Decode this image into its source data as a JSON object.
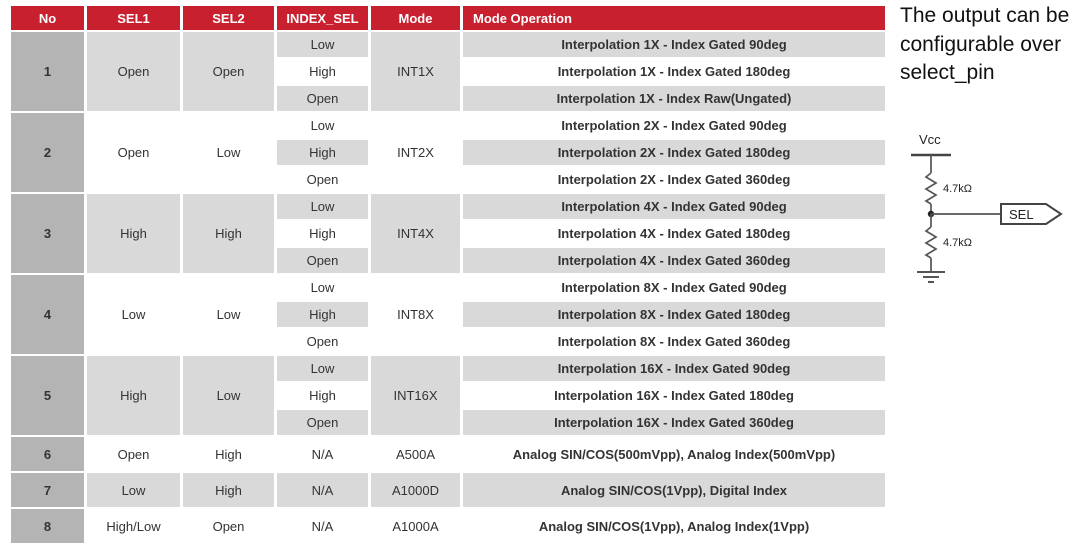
{
  "annotation": {
    "text": "The output can be configurable over select_pin"
  },
  "table": {
    "columns": [
      "No",
      "SEL1",
      "SEL2",
      "INDEX_SEL",
      "Mode",
      "Mode Operation"
    ],
    "groups": [
      {
        "no": "1",
        "sel1": "Open",
        "sel2": "Open",
        "mode": "INT1X",
        "rows": [
          {
            "index_sel": "Low",
            "operation": "Interpolation 1X - Index Gated 90deg"
          },
          {
            "index_sel": "High",
            "operation": "Interpolation 1X - Index Gated 180deg"
          },
          {
            "index_sel": "Open",
            "operation": "Interpolation 1X - Index Raw(Ungated)"
          }
        ]
      },
      {
        "no": "2",
        "sel1": "Open",
        "sel2": "Low",
        "mode": "INT2X",
        "rows": [
          {
            "index_sel": "Low",
            "operation": "Interpolation 2X - Index Gated 90deg"
          },
          {
            "index_sel": "High",
            "operation": "Interpolation 2X - Index Gated 180deg"
          },
          {
            "index_sel": "Open",
            "operation": "Interpolation 2X - Index Gated 360deg"
          }
        ]
      },
      {
        "no": "3",
        "sel1": "High",
        "sel2": "High",
        "mode": "INT4X",
        "rows": [
          {
            "index_sel": "Low",
            "operation": "Interpolation 4X - Index Gated 90deg"
          },
          {
            "index_sel": "High",
            "operation": "Interpolation 4X - Index Gated 180deg"
          },
          {
            "index_sel": "Open",
            "operation": "Interpolation 4X - Index Gated 360deg"
          }
        ]
      },
      {
        "no": "4",
        "sel1": "Low",
        "sel2": "Low",
        "mode": "INT8X",
        "rows": [
          {
            "index_sel": "Low",
            "operation": "Interpolation 8X - Index Gated 90deg"
          },
          {
            "index_sel": "High",
            "operation": "Interpolation 8X - Index Gated 180deg"
          },
          {
            "index_sel": "Open",
            "operation": "Interpolation 8X - Index Gated 360deg"
          }
        ]
      },
      {
        "no": "5",
        "sel1": "High",
        "sel2": "Low",
        "mode": "INT16X",
        "rows": [
          {
            "index_sel": "Low",
            "operation": "Interpolation 16X - Index Gated 90deg"
          },
          {
            "index_sel": "High",
            "operation": "Interpolation 16X - Index Gated 180deg"
          },
          {
            "index_sel": "Open",
            "operation": "Interpolation 16X - Index Gated 360deg"
          }
        ]
      },
      {
        "no": "6",
        "sel1": "Open",
        "sel2": "High",
        "index_sel": "N/A",
        "mode": "A500A",
        "operation": "Analog SIN/COS(500mVpp), Analog Index(500mVpp)"
      },
      {
        "no": "7",
        "sel1": "Low",
        "sel2": "High",
        "index_sel": "N/A",
        "mode": "A1000D",
        "operation": "Analog SIN/COS(1Vpp), Digital Index"
      },
      {
        "no": "8",
        "sel1": "High/Low",
        "sel2": "Open",
        "index_sel": "N/A",
        "mode": "A1000A",
        "operation": "Analog SIN/COS(1Vpp), Analog Index(1Vpp)"
      }
    ]
  },
  "circuit": {
    "vcc_label": "Vcc",
    "resistor_top_label": "4.7kΩ",
    "resistor_bottom_label": "4.7kΩ",
    "sel_tag_label": "SEL"
  },
  "colors": {
    "header_bg": "#c8202f",
    "header_text": "#ffffff",
    "no_column_bg": "#b4b4b4",
    "row_gray": "#d9d9d9",
    "row_white": "#ffffff",
    "cell_text": "#333333"
  }
}
